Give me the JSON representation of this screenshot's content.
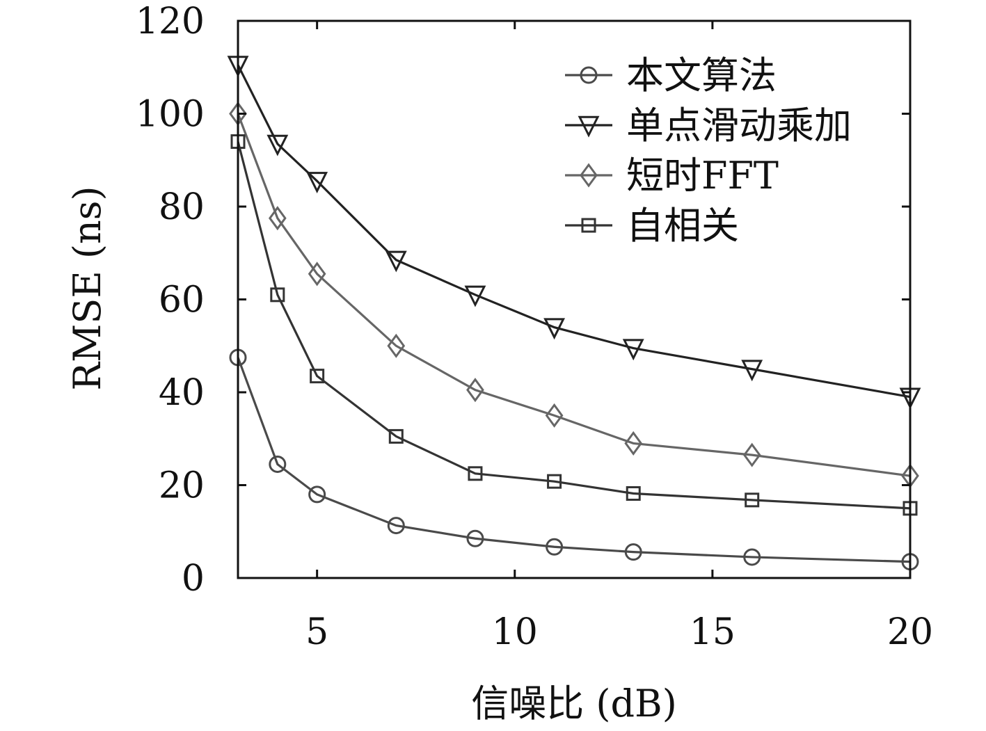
{
  "chart_data": {
    "type": "line",
    "title": "",
    "xlabel": "信噪比 (dB)",
    "ylabel": "RMSE (ns)",
    "xlim": [
      3,
      20
    ],
    "ylim": [
      0,
      120
    ],
    "xticks": [
      5,
      10,
      15,
      20
    ],
    "yticks": [
      0,
      20,
      40,
      60,
      80,
      100,
      120
    ],
    "grid": false,
    "legend_position": "top-right",
    "x": [
      3,
      4,
      5,
      7,
      9,
      11,
      13,
      16,
      20
    ],
    "series": [
      {
        "name": "本文算法",
        "marker": "circle",
        "color": "#4a4a4a",
        "values": [
          47.5,
          24.5,
          18,
          11.3,
          8.5,
          6.7,
          5.6,
          4.5,
          3.5
        ]
      },
      {
        "name": "单点滑动乘加",
        "marker": "triangle-down",
        "color": "#222222",
        "values": [
          110.5,
          93.5,
          85.5,
          68.5,
          61,
          54,
          49.5,
          45,
          39
        ]
      },
      {
        "name": "短时FFT",
        "marker": "diamond",
        "color": "#666666",
        "values": [
          100,
          77.5,
          65.5,
          50,
          40.5,
          35,
          29,
          26.5,
          22
        ]
      },
      {
        "name": "自相关",
        "marker": "square",
        "color": "#333333",
        "values": [
          94,
          61,
          43.5,
          30.5,
          22.5,
          20.8,
          18.2,
          16.8,
          15
        ]
      }
    ]
  }
}
